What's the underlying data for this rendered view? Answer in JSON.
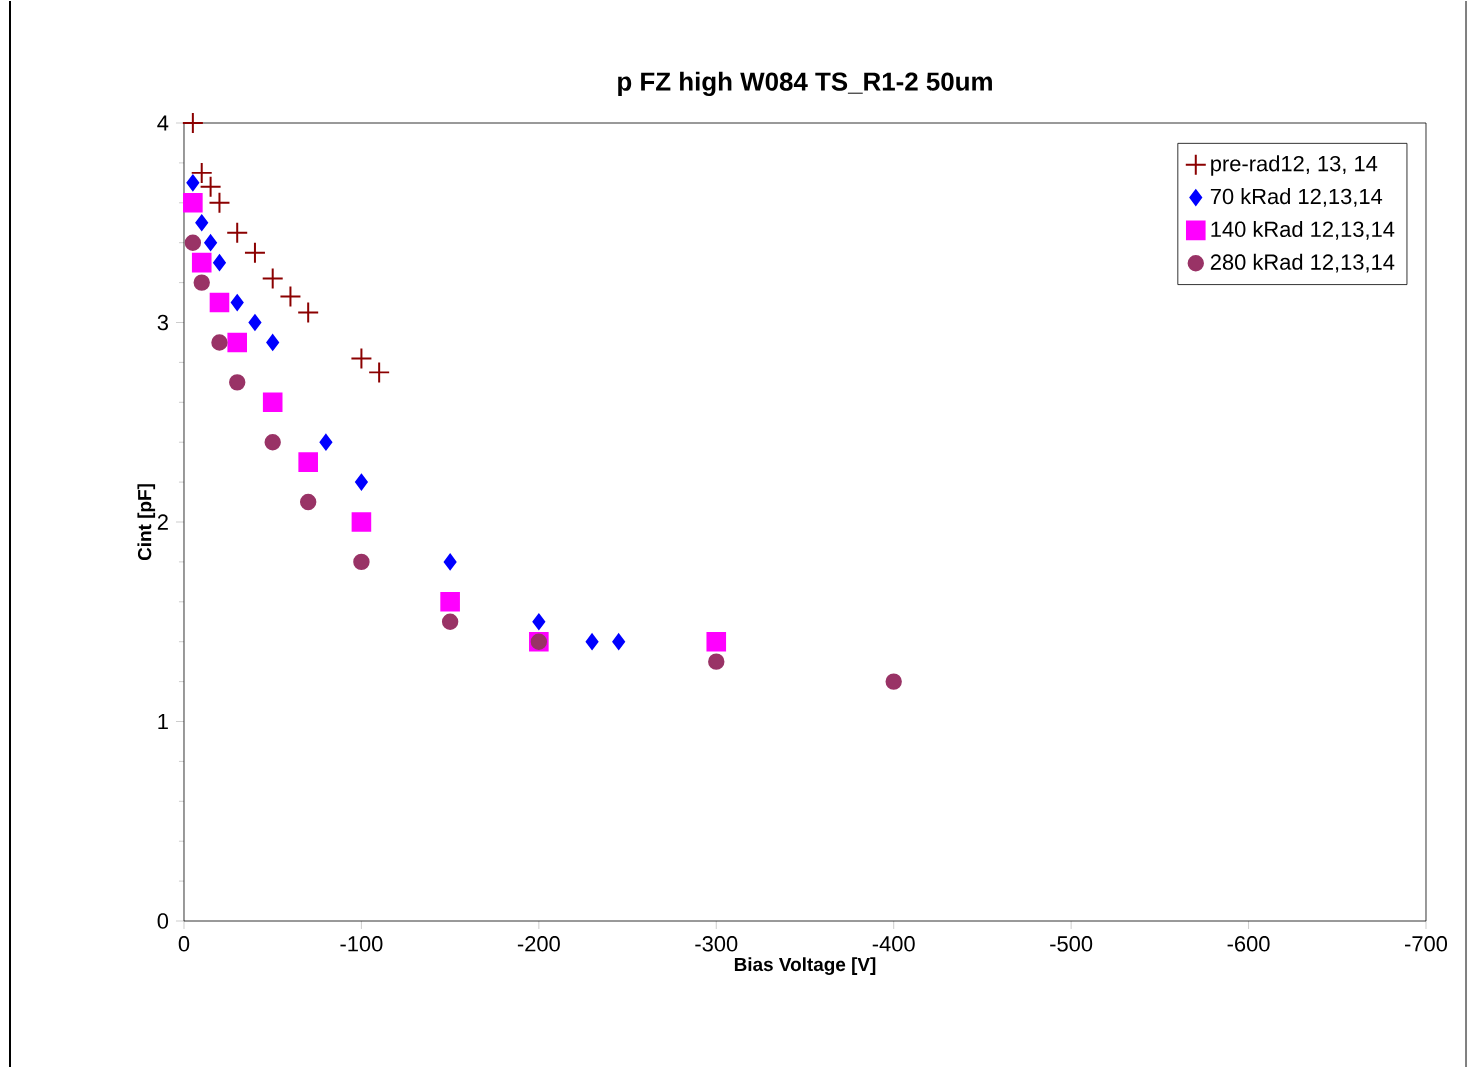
{
  "chart_data": {
    "type": "scatter",
    "title": "p FZ high W084 TS_R1-2 50um",
    "xlabel": "Bias Voltage [V]",
    "ylabel": "Cint [pF]",
    "xlim": [
      0,
      -700
    ],
    "xticks": [
      0,
      -100,
      -200,
      -300,
      -400,
      -500,
      -600,
      -700
    ],
    "ylim": [
      0,
      4
    ],
    "yticks": [
      0,
      1,
      2,
      3,
      4
    ],
    "legend": "top right",
    "grid": false,
    "series": [
      {
        "name": "pre-rad12, 13, 14",
        "color": "#8b0000",
        "marker": "cross",
        "x": [
          -5,
          -10,
          -15,
          -20,
          -30,
          -40,
          -50,
          -60,
          -70,
          -100,
          -110
        ],
        "values": [
          4.0,
          3.75,
          3.68,
          3.6,
          3.45,
          3.35,
          3.22,
          3.13,
          3.05,
          2.82,
          2.75
        ]
      },
      {
        "name": "70 kRad 12,13,14",
        "color": "#0000ff",
        "marker": "diamond",
        "x": [
          -5,
          -10,
          -15,
          -20,
          -30,
          -40,
          -50,
          -80,
          -100,
          -150,
          -200,
          -230,
          -245
        ],
        "values": [
          3.7,
          3.5,
          3.4,
          3.3,
          3.1,
          3.0,
          2.9,
          2.4,
          2.2,
          1.8,
          1.5,
          1.4,
          1.4
        ]
      },
      {
        "name": "140 kRad 12,13,14",
        "color": "#ff00ff",
        "marker": "square",
        "x": [
          -5,
          -10,
          -20,
          -30,
          -50,
          -70,
          -100,
          -150,
          -200,
          -300
        ],
        "values": [
          3.6,
          3.3,
          3.1,
          2.9,
          2.6,
          2.3,
          2.0,
          1.6,
          1.4,
          1.4
        ]
      },
      {
        "name": "280 kRad 12,13,14",
        "color": "#993366",
        "marker": "circle",
        "x": [
          -5,
          -10,
          -20,
          -30,
          -50,
          -70,
          -100,
          -150,
          -200,
          -300,
          -400
        ],
        "values": [
          3.4,
          3.2,
          2.9,
          2.7,
          2.4,
          2.1,
          1.8,
          1.5,
          1.4,
          1.3,
          1.2
        ]
      }
    ]
  }
}
